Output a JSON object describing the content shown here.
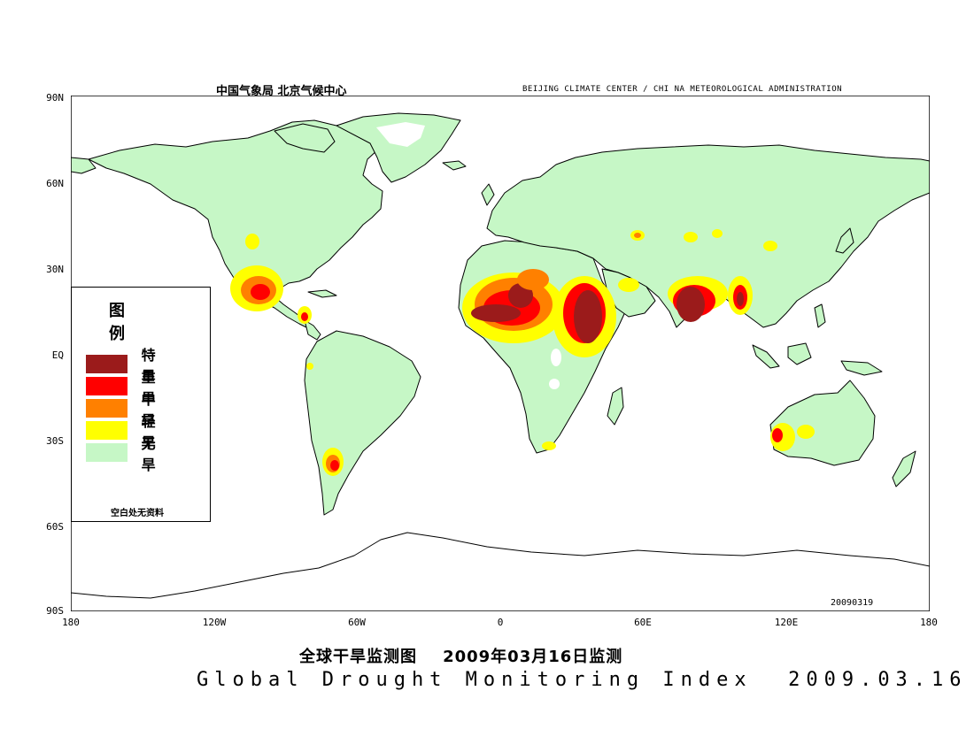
{
  "header": {
    "agency_cn": "中国气象局  北京气候中心",
    "agency_en": "BEIJING CLIMATE CENTER / CHI NA METEOROLOGICAL ADMINISTRATION"
  },
  "axes": {
    "lat_ticks": [
      "90N",
      "60N",
      "30N",
      "EQ",
      "30S",
      "60S",
      "90S"
    ],
    "lon_ticks": [
      "180",
      "120W",
      "60W",
      "0",
      "60E",
      "120E",
      "180"
    ]
  },
  "legend": {
    "title": "图 例",
    "items": [
      {
        "label": "特 旱",
        "color": "#9b1b1b"
      },
      {
        "label": "重 旱",
        "color": "#ff0000"
      },
      {
        "label": "中 旱",
        "color": "#ff8000"
      },
      {
        "label": "轻 旱",
        "color": "#ffff00"
      },
      {
        "label": "无 旱",
        "color": "#c6f7c6"
      }
    ],
    "note": "空白处无资料"
  },
  "map_stamp": "20090319",
  "title_cn": "全球干旱监测图    2009年03月16日监测",
  "title_en": "Global Drought Monitoring Index  2009.03.16",
  "colors": {
    "extreme": "#9b1b1b",
    "severe": "#ff0000",
    "moderate": "#ff8000",
    "light": "#ffff00",
    "none": "#c6f7c6",
    "coast": "#000000"
  }
}
